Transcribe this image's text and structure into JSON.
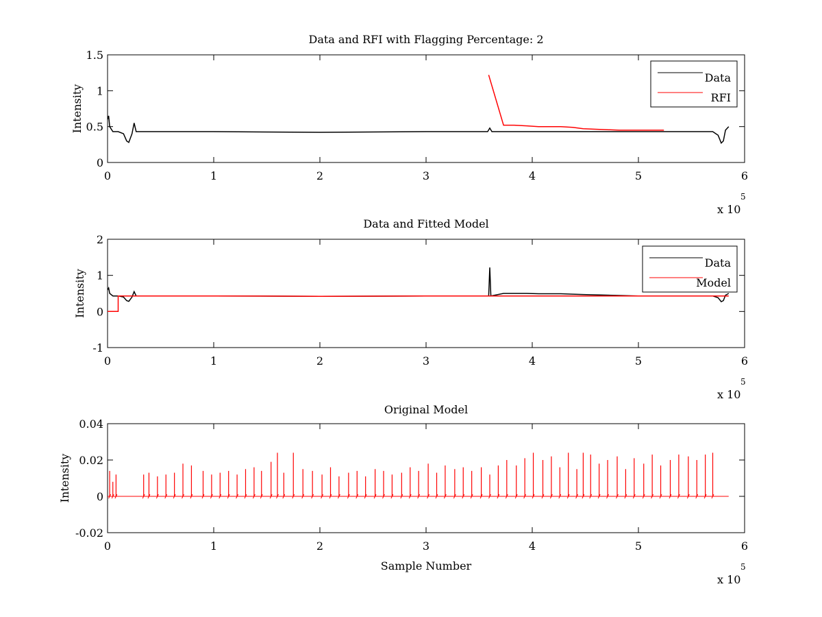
{
  "chart_data": [
    {
      "type": "line",
      "title": "Data and RFI with Flagging Percentage: 2",
      "xlabel": "",
      "ylabel": "Intensity",
      "xlim": [
        0,
        6
      ],
      "ylim": [
        0,
        1.5
      ],
      "x_exponent_base": "x 10",
      "x_exponent_power": "5",
      "x_ticks": [
        "0",
        "1",
        "2",
        "3",
        "4",
        "5",
        "6"
      ],
      "y_ticks": [
        "0",
        "0.5",
        "1",
        "1.5"
      ],
      "legend": {
        "position": "top-right",
        "entries": [
          {
            "label": "Data",
            "color": "#000000"
          },
          {
            "label": "RFI",
            "color": "#ff0000"
          }
        ]
      },
      "series": [
        {
          "name": "Data",
          "color": "#000000",
          "x": [
            0,
            0.01,
            0.02,
            0.05,
            0.1,
            0.15,
            0.18,
            0.2,
            0.23,
            0.25,
            0.27,
            0.3,
            1,
            2,
            3,
            3.58,
            3.6,
            3.62,
            4,
            5,
            5.7,
            5.75,
            5.78,
            5.8,
            5.82,
            5.85
          ],
          "y": [
            0.6,
            0.65,
            0.5,
            0.43,
            0.43,
            0.4,
            0.3,
            0.28,
            0.4,
            0.55,
            0.43,
            0.43,
            0.43,
            0.42,
            0.43,
            0.43,
            0.48,
            0.43,
            0.43,
            0.43,
            0.43,
            0.38,
            0.27,
            0.3,
            0.45,
            0.5
          ]
        },
        {
          "name": "RFI",
          "color": "#ff0000",
          "x": [
            3.59,
            3.73,
            3.83,
            3.95,
            4.06,
            4.16,
            4.27,
            4.38,
            4.48,
            4.82,
            5.24
          ],
          "y": [
            1.22,
            0.52,
            0.52,
            0.51,
            0.5,
            0.5,
            0.5,
            0.49,
            0.47,
            0.45,
            0.45
          ]
        }
      ]
    },
    {
      "type": "line",
      "title": "Data and Fitted Model",
      "xlabel": "",
      "ylabel": "Intensity",
      "xlim": [
        0,
        6
      ],
      "ylim": [
        -1,
        2
      ],
      "x_exponent_base": "x 10",
      "x_exponent_power": "5",
      "x_ticks": [
        "0",
        "1",
        "2",
        "3",
        "4",
        "5",
        "6"
      ],
      "y_ticks": [
        "-1",
        "0",
        "1",
        "2"
      ],
      "legend": {
        "position": "top-right",
        "entries": [
          {
            "label": "Data",
            "color": "#000000"
          },
          {
            "label": "Model",
            "color": "#ff0000"
          }
        ]
      },
      "series": [
        {
          "name": "Data",
          "color": "#000000",
          "x": [
            0,
            0.01,
            0.02,
            0.05,
            0.1,
            0.15,
            0.18,
            0.2,
            0.23,
            0.25,
            0.27,
            0.3,
            1,
            2,
            3,
            3.59,
            3.6,
            3.61,
            3.73,
            3.83,
            3.95,
            4.06,
            4.16,
            4.27,
            4.38,
            4.48,
            5,
            5.7,
            5.75,
            5.78,
            5.8,
            5.82,
            5.85
          ],
          "y": [
            0.6,
            0.65,
            0.5,
            0.43,
            0.43,
            0.4,
            0.3,
            0.28,
            0.4,
            0.55,
            0.43,
            0.43,
            0.43,
            0.42,
            0.43,
            0.43,
            1.22,
            0.43,
            0.5,
            0.5,
            0.5,
            0.49,
            0.49,
            0.49,
            0.48,
            0.47,
            0.43,
            0.43,
            0.38,
            0.27,
            0.3,
            0.45,
            0.5
          ]
        },
        {
          "name": "Model",
          "color": "#ff0000",
          "x": [
            0,
            0.1,
            0.1,
            1,
            2,
            3,
            4,
            5,
            5.85
          ],
          "y": [
            0,
            0,
            0.43,
            0.43,
            0.42,
            0.43,
            0.43,
            0.43,
            0.43
          ]
        }
      ]
    },
    {
      "type": "line",
      "title": "Original Model",
      "xlabel": "Sample Number",
      "ylabel": "Intensity",
      "xlim": [
        0,
        6
      ],
      "ylim": [
        -0.02,
        0.04
      ],
      "x_exponent_base": "x 10",
      "x_exponent_power": "5",
      "x_ticks": [
        "0",
        "1",
        "2",
        "3",
        "4",
        "5",
        "6"
      ],
      "y_ticks": [
        "-0.02",
        "0",
        "0.02",
        "0.04"
      ],
      "legend": null,
      "series": [
        {
          "name": "",
          "color": "#ff0000",
          "baseline": 0,
          "x": [
            0.02,
            0.05,
            0.08,
            0.34,
            0.39,
            0.47,
            0.55,
            0.63,
            0.71,
            0.79,
            0.9,
            0.98,
            1.06,
            1.14,
            1.22,
            1.3,
            1.38,
            1.45,
            1.54,
            1.6,
            1.66,
            1.75,
            1.84,
            1.93,
            2.02,
            2.1,
            2.18,
            2.27,
            2.35,
            2.43,
            2.52,
            2.6,
            2.68,
            2.77,
            2.85,
            2.93,
            3.02,
            3.1,
            3.18,
            3.27,
            3.35,
            3.43,
            3.52,
            3.6,
            3.68,
            3.76,
            3.85,
            3.93,
            4.01,
            4.1,
            4.18,
            4.26,
            4.34,
            4.42,
            4.48,
            4.55,
            4.63,
            4.71,
            4.8,
            4.88,
            4.96,
            5.05,
            5.13,
            5.21,
            5.3,
            5.38,
            5.47,
            5.55,
            5.63,
            5.7
          ],
          "y": [
            0.014,
            0.008,
            0.012,
            0.012,
            0.013,
            0.011,
            0.012,
            0.013,
            0.018,
            0.017,
            0.014,
            0.012,
            0.013,
            0.014,
            0.012,
            0.015,
            0.016,
            0.014,
            0.019,
            0.024,
            0.013,
            0.024,
            0.015,
            0.014,
            0.012,
            0.016,
            0.011,
            0.013,
            0.014,
            0.011,
            0.015,
            0.014,
            0.012,
            0.013,
            0.016,
            0.014,
            0.018,
            0.013,
            0.017,
            0.015,
            0.016,
            0.014,
            0.016,
            0.012,
            0.017,
            0.02,
            0.017,
            0.021,
            0.024,
            0.02,
            0.022,
            0.016,
            0.024,
            0.015,
            0.024,
            0.023,
            0.018,
            0.02,
            0.022,
            0.015,
            0.021,
            0.018,
            0.023,
            0.017,
            0.02,
            0.023,
            0.022,
            0.02,
            0.023,
            0.024
          ]
        }
      ]
    }
  ]
}
